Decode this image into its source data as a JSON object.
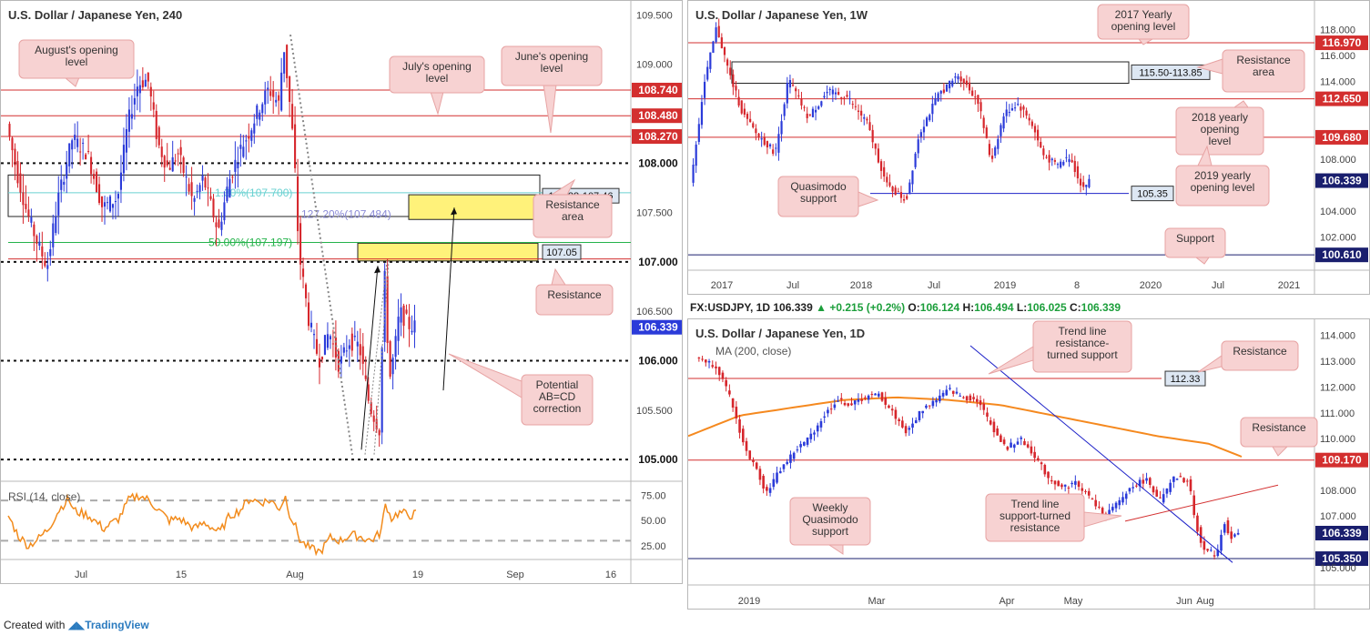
{
  "footer": {
    "prefix": "Created with",
    "brand": "TradingView"
  },
  "panels": {
    "left": {
      "title": "U.S. Dollar / Japanese Yen, 240",
      "indicator": "RSI (14, close)"
    },
    "top_right": {
      "title": "U.S. Dollar / Japanese Yen, 1W"
    },
    "bottom_right": {
      "title": "U.S. Dollar / Japanese Yen, 1D",
      "indicator": "MA (200, close)",
      "header": {
        "symbol": "FX:USDJPY, 1D",
        "last": "106.339",
        "change": "+0.215 (+0.2%)",
        "open_label": "O:",
        "open": "106.124",
        "high_label": "H:",
        "high": "106.494",
        "low_label": "L:",
        "low": "106.025",
        "close_label": "C:",
        "close": "106.339"
      }
    }
  },
  "colors": {
    "bull": "#2b3bd9",
    "bear": "#d6262c",
    "level": "#d32f2f",
    "support": "#1e22c8",
    "ma": "#f5891f",
    "zone": "#fff27a",
    "note_bg": "#f7d2d2",
    "note_border": "#e7a3a3",
    "rsi": "#f28b1c",
    "fib_green": "#25b34b",
    "fib_cyan": "#6ad1d1"
  },
  "chart_data": [
    {
      "id": "h4",
      "type": "candlestick",
      "title": "U.S. Dollar / Japanese Yen, 240",
      "ylim": [
        104.9,
        109.55
      ],
      "y_ticks": [
        "109.500",
        "109.000",
        "107.500",
        "106.500",
        "105.500"
      ],
      "x_ticks": [
        "Jul",
        "15",
        "Aug",
        "19",
        "Sep",
        "16"
      ],
      "close_path": [
        [
          0,
          108.4
        ],
        [
          2,
          107.9
        ],
        [
          4,
          107.5
        ],
        [
          6,
          107.2
        ],
        [
          8,
          106.95
        ],
        [
          10,
          107.6
        ],
        [
          13,
          108.25
        ],
        [
          16,
          108.1
        ],
        [
          19,
          107.55
        ],
        [
          22,
          107.65
        ],
        [
          24,
          108.4
        ],
        [
          26,
          108.8
        ],
        [
          28,
          108.85
        ],
        [
          30,
          108.2
        ],
        [
          32,
          107.95
        ],
        [
          34,
          108.1
        ],
        [
          37,
          107.6
        ],
        [
          39,
          107.85
        ],
        [
          42,
          107.3
        ],
        [
          44,
          107.8
        ],
        [
          46,
          108.1
        ],
        [
          48,
          108.3
        ],
        [
          50,
          108.55
        ],
        [
          52,
          108.75
        ],
        [
          54,
          108.6
        ],
        [
          55,
          109.2
        ],
        [
          56,
          108.7
        ],
        [
          57,
          108.15
        ],
        [
          58,
          107.1
        ],
        [
          60,
          106.4
        ],
        [
          62,
          106.0
        ],
        [
          64,
          106.3
        ],
        [
          66,
          105.95
        ],
        [
          68,
          106.2
        ],
        [
          70,
          106.15
        ],
        [
          72,
          105.55
        ],
        [
          74,
          105.3
        ],
        [
          75,
          106.9
        ],
        [
          76,
          105.8
        ],
        [
          77,
          106.1
        ],
        [
          78,
          106.5
        ],
        [
          80,
          106.35
        ],
        [
          81,
          106.35
        ]
      ],
      "levels": [
        {
          "label": "108.740",
          "value": 108.74,
          "style": "red"
        },
        {
          "label": "108.480",
          "value": 108.48,
          "style": "red"
        },
        {
          "label": "108.270",
          "value": 108.27,
          "style": "red"
        },
        {
          "label": "108.000",
          "value": 108.0,
          "style": "dotted"
        },
        {
          "label": "107.000",
          "value": 107.0,
          "style": "dotted"
        },
        {
          "label": "106.000",
          "value": 106.0,
          "style": "dotted"
        },
        {
          "label": "105.000",
          "value": 105.0,
          "style": "dotted"
        }
      ],
      "last_price": {
        "label": "106.339",
        "value": 106.339
      },
      "zones": [
        {
          "label": "107.88-107.46",
          "top": 107.88,
          "bottom": 107.46,
          "kind": "box"
        },
        {
          "label": "107.05",
          "top": 107.19,
          "bottom": 107.01,
          "kind": "yellow"
        },
        {
          "top": 107.68,
          "bottom": 107.43,
          "kind": "yellow"
        }
      ],
      "fib": [
        {
          "label": "50.00%(107.197)",
          "value": 107.197
        },
        {
          "label": "127.20%(107.484)",
          "value": 107.484
        },
        {
          "label": "1.30%(107.700)",
          "value": 107.7
        }
      ],
      "notes": [
        "August's opening level",
        "July's opening level",
        "June's opening level",
        "Resistance area",
        "Resistance",
        "Potential AB=CD correction"
      ],
      "rsi": {
        "name": "RSI (14, close)",
        "ylim": [
          15,
          80
        ],
        "ticks": [
          "75.00",
          "50.00",
          "25.00"
        ],
        "bands": [
          70,
          30
        ],
        "path": [
          [
            0,
            55
          ],
          [
            2,
            35
          ],
          [
            4,
            25
          ],
          [
            6,
            32
          ],
          [
            8,
            42
          ],
          [
            10,
            60
          ],
          [
            12,
            72
          ],
          [
            13,
            60
          ],
          [
            16,
            55
          ],
          [
            19,
            42
          ],
          [
            22,
            52
          ],
          [
            24,
            71
          ],
          [
            26,
            75
          ],
          [
            28,
            70
          ],
          [
            30,
            60
          ],
          [
            32,
            50
          ],
          [
            34,
            52
          ],
          [
            37,
            42
          ],
          [
            39,
            48
          ],
          [
            42,
            38
          ],
          [
            44,
            55
          ],
          [
            46,
            60
          ],
          [
            48,
            72
          ],
          [
            50,
            68
          ],
          [
            52,
            70
          ],
          [
            54,
            62
          ],
          [
            55,
            75
          ],
          [
            56,
            55
          ],
          [
            57,
            45
          ],
          [
            58,
            30
          ],
          [
            60,
            22
          ],
          [
            62,
            19
          ],
          [
            64,
            33
          ],
          [
            66,
            30
          ],
          [
            68,
            36
          ],
          [
            70,
            34
          ],
          [
            72,
            30
          ],
          [
            74,
            38
          ],
          [
            75,
            68
          ],
          [
            76,
            52
          ],
          [
            77,
            56
          ],
          [
            78,
            58
          ],
          [
            80,
            55
          ],
          [
            81,
            57
          ]
        ]
      }
    },
    {
      "id": "w1",
      "type": "candlestick",
      "title": "U.S. Dollar / Japanese Yen, 1W",
      "ylim": [
        99.5,
        119.5
      ],
      "y_ticks": [
        "118.000",
        "116.000",
        "114.000",
        "108.000",
        "104.000",
        "102.000"
      ],
      "x_ticks": [
        "2017",
        "Jul",
        "2018",
        "Jul",
        "2019",
        "8",
        "2020",
        "Jul",
        "2021"
      ],
      "close_path": [
        [
          0,
          106
        ],
        [
          2,
          113.5
        ],
        [
          4,
          118.2
        ],
        [
          6,
          114.5
        ],
        [
          8,
          111.5
        ],
        [
          10,
          110
        ],
        [
          13,
          108.5
        ],
        [
          15,
          114.2
        ],
        [
          18,
          111.2
        ],
        [
          21,
          113.2
        ],
        [
          24,
          112.8
        ],
        [
          27,
          110.8
        ],
        [
          30,
          106
        ],
        [
          33,
          104.8
        ],
        [
          35,
          110
        ],
        [
          38,
          113
        ],
        [
          41,
          114.5
        ],
        [
          44,
          112.5
        ],
        [
          46,
          107.8
        ],
        [
          48,
          111.5
        ],
        [
          50,
          112.3
        ],
        [
          52,
          111.0
        ],
        [
          54,
          108.3
        ],
        [
          56,
          107.5
        ],
        [
          58,
          108.2
        ],
        [
          60,
          105.8
        ],
        [
          61,
          106.3
        ]
      ],
      "levels": [
        {
          "label": "116.970",
          "value": 116.97,
          "style": "red"
        },
        {
          "label": "112.650",
          "value": 112.65,
          "style": "red"
        },
        {
          "label": "109.680",
          "value": 109.68,
          "style": "red"
        },
        {
          "label": "100.610",
          "value": 100.61,
          "style": "blue"
        }
      ],
      "last_price": {
        "label": "106.339",
        "value": 106.339
      },
      "zones": [
        {
          "label": "115.50-113.85",
          "top": 115.5,
          "bottom": 113.85,
          "kind": "box"
        }
      ],
      "support": {
        "label": "105.35",
        "value": 105.35
      },
      "notes": [
        "2017 Yearly opening level",
        "Resistance area",
        "2018 yearly opening level",
        "2019 yearly opening level",
        "Quasimodo support",
        "Support"
      ]
    },
    {
      "id": "d1",
      "type": "candlestick",
      "title": "U.S. Dollar / Japanese Yen, 1D",
      "ylim": [
        104.4,
        114.2
      ],
      "y_ticks": [
        "114.000",
        "113.000",
        "112.000",
        "111.000",
        "110.000",
        "108.000",
        "107.000",
        "105.000"
      ],
      "x_ticks": [
        "2019",
        "Mar",
        "Apr",
        "May",
        "Jun",
        "Aug"
      ],
      "close_path": [
        [
          0,
          113.2
        ],
        [
          3,
          112.8
        ],
        [
          5,
          111.5
        ],
        [
          7,
          109.6
        ],
        [
          9,
          108.6
        ],
        [
          10,
          107.9
        ],
        [
          12,
          108.8
        ],
        [
          14,
          109.5
        ],
        [
          16,
          110.0
        ],
        [
          18,
          110.8
        ],
        [
          20,
          111.5
        ],
        [
          22,
          111.3
        ],
        [
          24,
          111.6
        ],
        [
          26,
          111.7
        ],
        [
          28,
          111.0
        ],
        [
          30,
          110.2
        ],
        [
          32,
          111.1
        ],
        [
          34,
          111.5
        ],
        [
          36,
          111.9
        ],
        [
          38,
          111.6
        ],
        [
          40,
          111.5
        ],
        [
          42,
          110.5
        ],
        [
          44,
          109.6
        ],
        [
          46,
          110.0
        ],
        [
          48,
          109.4
        ],
        [
          50,
          108.5
        ],
        [
          52,
          108.1
        ],
        [
          54,
          108.3
        ],
        [
          56,
          107.7
        ],
        [
          58,
          107.0
        ],
        [
          60,
          107.5
        ],
        [
          62,
          108.2
        ],
        [
          64,
          108.4
        ],
        [
          66,
          107.6
        ],
        [
          68,
          108.5
        ],
        [
          70,
          108.3
        ],
        [
          71,
          106.7
        ],
        [
          72,
          105.7
        ],
        [
          74,
          105.5
        ],
        [
          75,
          106.8
        ],
        [
          76,
          106.1
        ],
        [
          77,
          106.34
        ]
      ],
      "levels": [
        {
          "label": "109.170",
          "value": 109.17,
          "style": "red"
        },
        {
          "label": "105.350",
          "value": 105.35,
          "style": "blue"
        }
      ],
      "last_price": {
        "label": "106.339",
        "value": 106.339
      },
      "resistance_label": {
        "label": "112.33",
        "value": 112.33
      },
      "ma200": {
        "name": "MA (200, close)",
        "path": [
          [
            0,
            110.1
          ],
          [
            8,
            110.9
          ],
          [
            16,
            111.2
          ],
          [
            24,
            111.5
          ],
          [
            32,
            111.6
          ],
          [
            40,
            111.5
          ],
          [
            48,
            111.3
          ],
          [
            56,
            110.9
          ],
          [
            64,
            110.5
          ],
          [
            72,
            110.1
          ],
          [
            80,
            109.8
          ],
          [
            85,
            109.3
          ]
        ]
      },
      "notes": [
        "Trend line resistance-turned support",
        "Resistance",
        "Resistance",
        "Trend line support-turned resistance",
        "Weekly Quasimodo support"
      ]
    }
  ]
}
